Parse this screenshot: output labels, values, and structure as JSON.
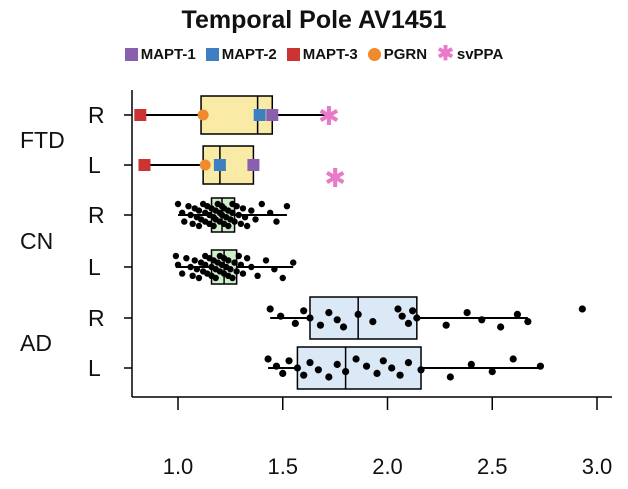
{
  "chart_data": {
    "type": "boxplot",
    "title": "Temporal Pole AV1451",
    "xlabel": "",
    "ylabel": "",
    "xlim": [
      0.8,
      3.05
    ],
    "xticks": [
      "1.0",
      "1.5",
      "2.0",
      "2.5",
      "3.0"
    ],
    "xtick_values": [
      1.0,
      1.5,
      2.0,
      2.5,
      3.0
    ],
    "legend": [
      {
        "label": "MAPT-1",
        "color": "#8b5fb0",
        "shape": "square"
      },
      {
        "label": "MAPT-2",
        "color": "#3d7fc0",
        "shape": "square"
      },
      {
        "label": "MAPT-3",
        "color": "#cc3333",
        "shape": "square"
      },
      {
        "label": "PGRN",
        "color": "#f08a2c",
        "shape": "circle"
      },
      {
        "label": "svPPA",
        "color": "#e87ac8",
        "shape": "star"
      }
    ],
    "groups": [
      {
        "label": "FTD",
        "rows": [
          {
            "label": "R",
            "box_color": "#f9eaa5",
            "whisker": [
              0.83,
              1.71
            ],
            "q1": 1.11,
            "median": 1.38,
            "q3": 1.45,
            "markers": [
              {
                "x": 0.82,
                "type": "MAPT-3"
              },
              {
                "x": 1.12,
                "type": "PGRN"
              },
              {
                "x": 1.39,
                "type": "MAPT-2"
              },
              {
                "x": 1.45,
                "type": "MAPT-1"
              },
              {
                "x": 1.72,
                "type": "svPPA"
              }
            ]
          },
          {
            "label": "L",
            "box_color": "#f9eaa5",
            "whisker": [
              0.85,
              1.35
            ],
            "q1": 1.12,
            "median": 1.2,
            "q3": 1.36,
            "markers": [
              {
                "x": 0.84,
                "type": "MAPT-3"
              },
              {
                "x": 1.13,
                "type": "PGRN"
              },
              {
                "x": 1.2,
                "type": "MAPT-2"
              },
              {
                "x": 1.36,
                "type": "MAPT-1"
              },
              {
                "x": 1.75,
                "type": "svPPA"
              }
            ]
          }
        ]
      },
      {
        "label": "CN",
        "rows": [
          {
            "label": "R",
            "box_color": "#cfeecb",
            "whisker": [
              1.0,
              1.52
            ],
            "q1": 1.16,
            "median": 1.21,
            "q3": 1.27,
            "points": [
              1.0,
              1.02,
              1.03,
              1.05,
              1.06,
              1.07,
              1.08,
              1.09,
              1.1,
              1.1,
              1.11,
              1.12,
              1.13,
              1.13,
              1.14,
              1.15,
              1.15,
              1.16,
              1.17,
              1.17,
              1.18,
              1.18,
              1.19,
              1.2,
              1.2,
              1.21,
              1.21,
              1.22,
              1.22,
              1.23,
              1.24,
              1.24,
              1.25,
              1.26,
              1.26,
              1.27,
              1.28,
              1.29,
              1.3,
              1.31,
              1.32,
              1.33,
              1.35,
              1.37,
              1.4,
              1.44,
              1.47,
              1.52
            ]
          },
          {
            "label": "L",
            "box_color": "#cfeecb",
            "whisker": [
              0.99,
              1.55
            ],
            "q1": 1.16,
            "median": 1.22,
            "q3": 1.28,
            "points": [
              0.99,
              1.0,
              1.02,
              1.04,
              1.06,
              1.07,
              1.08,
              1.09,
              1.1,
              1.11,
              1.12,
              1.13,
              1.13,
              1.14,
              1.15,
              1.16,
              1.16,
              1.17,
              1.18,
              1.18,
              1.19,
              1.2,
              1.2,
              1.21,
              1.22,
              1.22,
              1.23,
              1.24,
              1.24,
              1.25,
              1.26,
              1.27,
              1.28,
              1.29,
              1.3,
              1.31,
              1.33,
              1.35,
              1.38,
              1.42,
              1.46,
              1.5,
              1.55
            ]
          }
        ]
      },
      {
        "label": "AD",
        "rows": [
          {
            "label": "R",
            "box_color": "#dbe8f5",
            "whisker": [
              1.44,
              2.67
            ],
            "q1": 1.63,
            "median": 1.86,
            "q3": 2.14,
            "points": [
              1.44,
              1.49,
              1.56,
              1.6,
              1.63,
              1.68,
              1.72,
              1.76,
              1.79,
              1.86,
              1.93,
              2.05,
              2.07,
              2.1,
              2.12,
              2.14,
              2.28,
              2.38,
              2.45,
              2.54,
              2.62,
              2.67,
              2.93
            ]
          },
          {
            "label": "L",
            "box_color": "#dbe8f5",
            "whisker": [
              1.43,
              2.73
            ],
            "q1": 1.57,
            "median": 1.8,
            "q3": 2.16,
            "points": [
              1.43,
              1.47,
              1.5,
              1.53,
              1.57,
              1.6,
              1.63,
              1.67,
              1.72,
              1.76,
              1.8,
              1.85,
              1.9,
              1.95,
              1.98,
              2.02,
              2.06,
              2.1,
              2.16,
              2.3,
              2.4,
              2.5,
              2.6,
              2.73
            ]
          }
        ]
      }
    ]
  }
}
